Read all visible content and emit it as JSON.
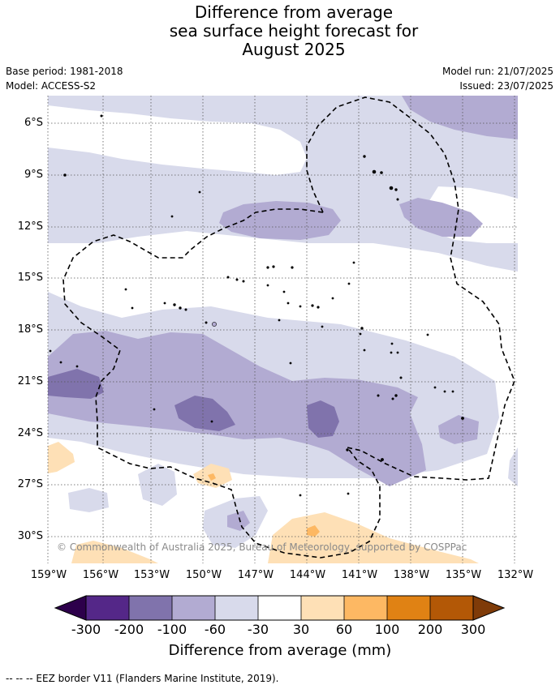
{
  "title_lines": [
    "Difference from average",
    "sea surface height forecast for",
    "August 2025"
  ],
  "meta": {
    "base_period": "Base period: 1981-2018",
    "model": "Model: ACCESS-S2",
    "model_run": "Model run: 21/07/2025",
    "issued": "Issued: 23/07/2025"
  },
  "lat_labels": [
    "6°S",
    "9°S",
    "12°S",
    "15°S",
    "18°S",
    "21°S",
    "24°S",
    "27°S",
    "30°S"
  ],
  "lon_labels": [
    "159°W",
    "156°W",
    "153°W",
    "150°W",
    "147°W",
    "144°W",
    "141°W",
    "138°W",
    "135°W",
    "132°W"
  ],
  "copyright": "© Commonwealth of Australia 2025, Bureau of Meteorology, supported by COSPPac",
  "colorbar": {
    "labels": [
      "-300",
      "-200",
      "-100",
      "-60",
      "-30",
      "30",
      "60",
      "100",
      "200",
      "300"
    ],
    "colors": [
      "#2d004b",
      "#542788",
      "#8073ac",
      "#b2abd2",
      "#d8daeb",
      "#ffffff",
      "#fee0b6",
      "#fdb863",
      "#e08214",
      "#b35806",
      "#7f3b08"
    ],
    "title": "Difference from average (mm)"
  },
  "footnote": "--  --  -- EEZ border V11 (Flanders Marine Institute, 2019)."
}
